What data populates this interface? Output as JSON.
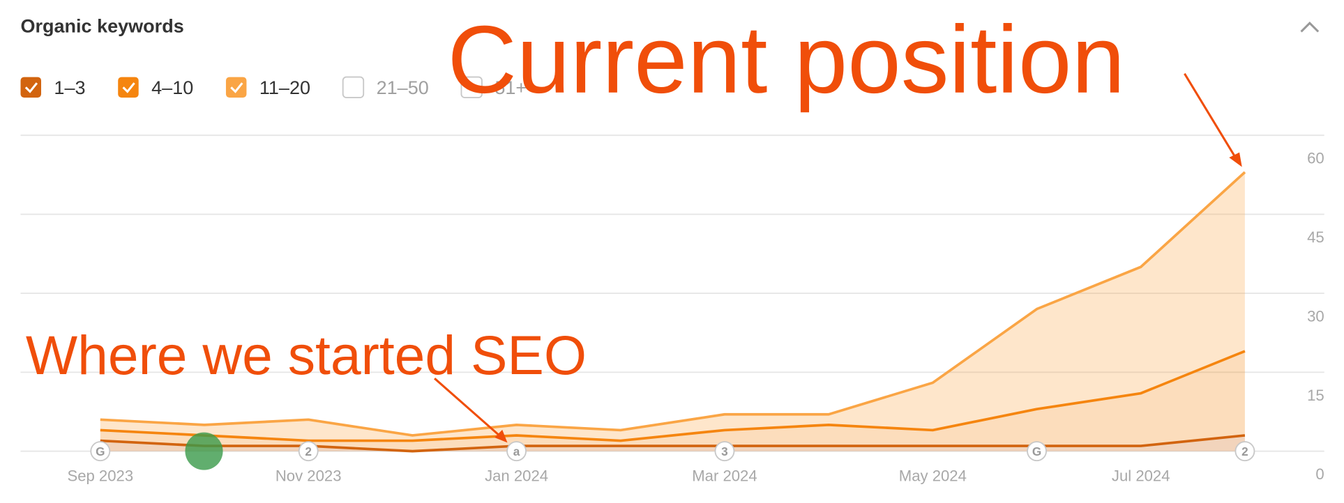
{
  "header": {
    "title": "Organic keywords"
  },
  "chart_data": {
    "type": "stacked-area",
    "categories": [
      "Sep 2023",
      null,
      "Nov 2023",
      null,
      "Jan 2024",
      null,
      "Mar 2024",
      null,
      "May 2024",
      null,
      "Jul 2024",
      null
    ],
    "series": [
      {
        "name": "1–3",
        "color": "#d2640f",
        "values": [
          2,
          1,
          1,
          0,
          1,
          1,
          1,
          1,
          1,
          1,
          1,
          3
        ]
      },
      {
        "name": "4–10",
        "color": "#f5850f",
        "values": [
          2,
          2,
          1,
          2,
          2,
          1,
          3,
          4,
          3,
          7,
          10,
          16
        ]
      },
      {
        "name": "11–20",
        "color": "#faa545",
        "values": [
          2,
          2,
          4,
          1,
          2,
          2,
          3,
          2,
          9,
          19,
          24,
          34
        ]
      }
    ],
    "inactive_series": [
      "21–50",
      "51+"
    ],
    "markers": [
      "G",
      null,
      "2",
      null,
      "a",
      null,
      "3",
      null,
      null,
      "G",
      null,
      "2"
    ],
    "ylim": [
      0,
      60
    ],
    "yticks": [
      0,
      15,
      30,
      45,
      60
    ],
    "grid": true,
    "annotations": [
      "Current position",
      "Where we started SEO"
    ]
  }
}
